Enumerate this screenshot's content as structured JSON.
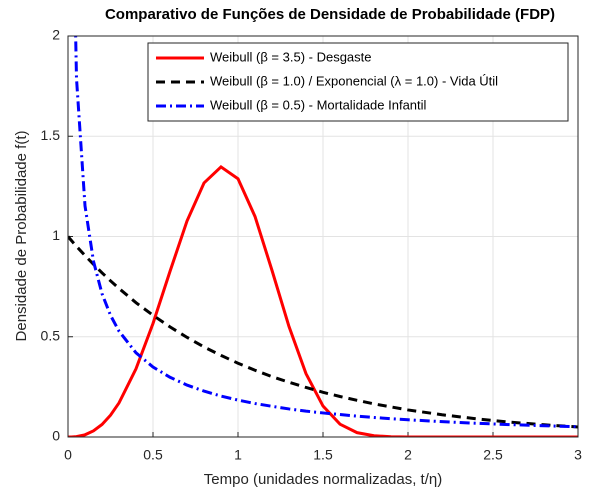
{
  "chart_data": {
    "type": "line",
    "title": "Comparativo de Funções de Densidade de Probabilidade (FDP)",
    "x_label": "Tempo (unidades normalizadas, t/η)",
    "y_label": "Densidade de Probabilidade f(t)",
    "x": [
      0,
      0.02,
      0.05,
      0.1,
      0.15,
      0.2,
      0.25,
      0.3,
      0.4,
      0.5,
      0.6,
      0.7,
      0.8,
      0.9,
      1.0,
      1.1,
      1.2,
      1.3,
      1.4,
      1.5,
      1.6,
      1.7,
      1.8,
      1.9,
      2.0,
      2.2,
      2.4,
      2.6,
      2.8,
      3.0
    ],
    "series": [
      {
        "name": "Weibull (β = 3.5) - Desgaste",
        "color": "#ff0000",
        "style": "solid",
        "values": [
          0,
          0.0002,
          0.002,
          0.011,
          0.0305,
          0.0624,
          0.1085,
          0.17,
          0.34,
          0.566,
          0.826,
          1.077,
          1.267,
          1.347,
          1.288,
          1.1,
          0.831,
          0.551,
          0.316,
          0.1545,
          0.0638,
          0.0218,
          0.0061,
          0.0014,
          0.0002,
          0,
          0,
          0,
          0,
          0
        ]
      },
      {
        "name": "Weibull (β = 1.0) / Exponencial (λ = 1.0) - Vida Útil",
        "color": "#000000",
        "style": "dashed",
        "values": [
          1,
          0.98,
          0.951,
          0.905,
          0.861,
          0.819,
          0.779,
          0.741,
          0.67,
          0.607,
          0.549,
          0.497,
          0.449,
          0.407,
          0.368,
          0.333,
          0.301,
          0.273,
          0.247,
          0.223,
          0.202,
          0.183,
          0.165,
          0.15,
          0.135,
          0.111,
          0.091,
          0.074,
          0.061,
          0.05
        ]
      },
      {
        "name": "Weibull (β = 0.5) - Mortalidade Infantil",
        "color": "#0000ff",
        "style": "dashdot",
        "values": [
          null,
          3.07,
          1.788,
          1.153,
          0.876,
          0.715,
          0.607,
          0.528,
          0.42,
          0.349,
          0.298,
          0.259,
          0.229,
          0.204,
          0.184,
          0.167,
          0.153,
          0.14,
          0.129,
          0.12,
          0.112,
          0.104,
          0.0974,
          0.0914,
          0.086,
          0.0765,
          0.0685,
          0.0618,
          0.0561,
          0.0511
        ]
      }
    ],
    "xlim": [
      0,
      3
    ],
    "xticks": [
      0,
      0.5,
      1,
      1.5,
      2,
      2.5,
      3
    ],
    "ylim": [
      0,
      2
    ],
    "yticks": [
      0,
      0.5,
      1,
      1.5,
      2
    ],
    "grid": true,
    "legend": "top-right"
  }
}
